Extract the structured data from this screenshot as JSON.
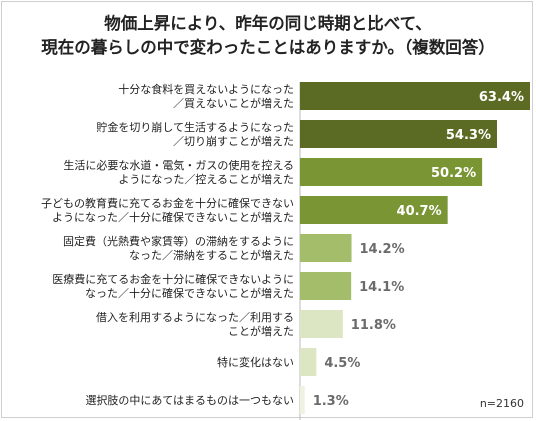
{
  "title_lines": [
    "物価上昇により、昨年の同じ時期と比べて、",
    "現在の暮らしの中で変わったことはありますか。（複数回答）"
  ],
  "note": "n=2160",
  "chart_data": {
    "type": "bar",
    "orientation": "horizontal",
    "unit": "%",
    "categories": [
      [
        "十分な食料を買えないようになった",
        "／買えないことが増えた"
      ],
      [
        "貯金を切り崩して生活するようになった",
        "／切り崩すことが増えた"
      ],
      [
        "生活に必要な水道・電気・ガスの使用を控える",
        "ようになった／控えることが増えた"
      ],
      [
        "子どもの教育費に充てるお金を十分に確保できない",
        "ようになった／十分に確保できないことが増えた"
      ],
      [
        "固定費（光熱費や家賃等）の滞納をするように",
        "なった／滞納をすることが増えた"
      ],
      [
        "医療費に充てるお金を十分に確保できないように",
        "なった／十分に確保できないことが増えた"
      ],
      [
        "借入を利用するようになった／利用する",
        "ことが増えた"
      ],
      [
        "特に変化はない"
      ],
      [
        "選択肢の中にあてはまるものは一つもない"
      ]
    ],
    "values": [
      63.4,
      54.3,
      50.2,
      40.7,
      14.2,
      14.1,
      11.8,
      4.5,
      1.3
    ],
    "value_labels": [
      "63.4%",
      "54.3%",
      "50.2%",
      "40.7%",
      "14.2%",
      "14.1%",
      "11.8%",
      "4.5%",
      "1.3%"
    ],
    "colors": [
      "#5b6b24",
      "#5b6b24",
      "#7a9534",
      "#7a9534",
      "#a3bd6a",
      "#a3bd6a",
      "#dde6c3",
      "#dde6c3",
      "#eef2e0"
    ],
    "xlim": [
      0,
      63.4
    ],
    "legend": "none",
    "grid": false
  }
}
